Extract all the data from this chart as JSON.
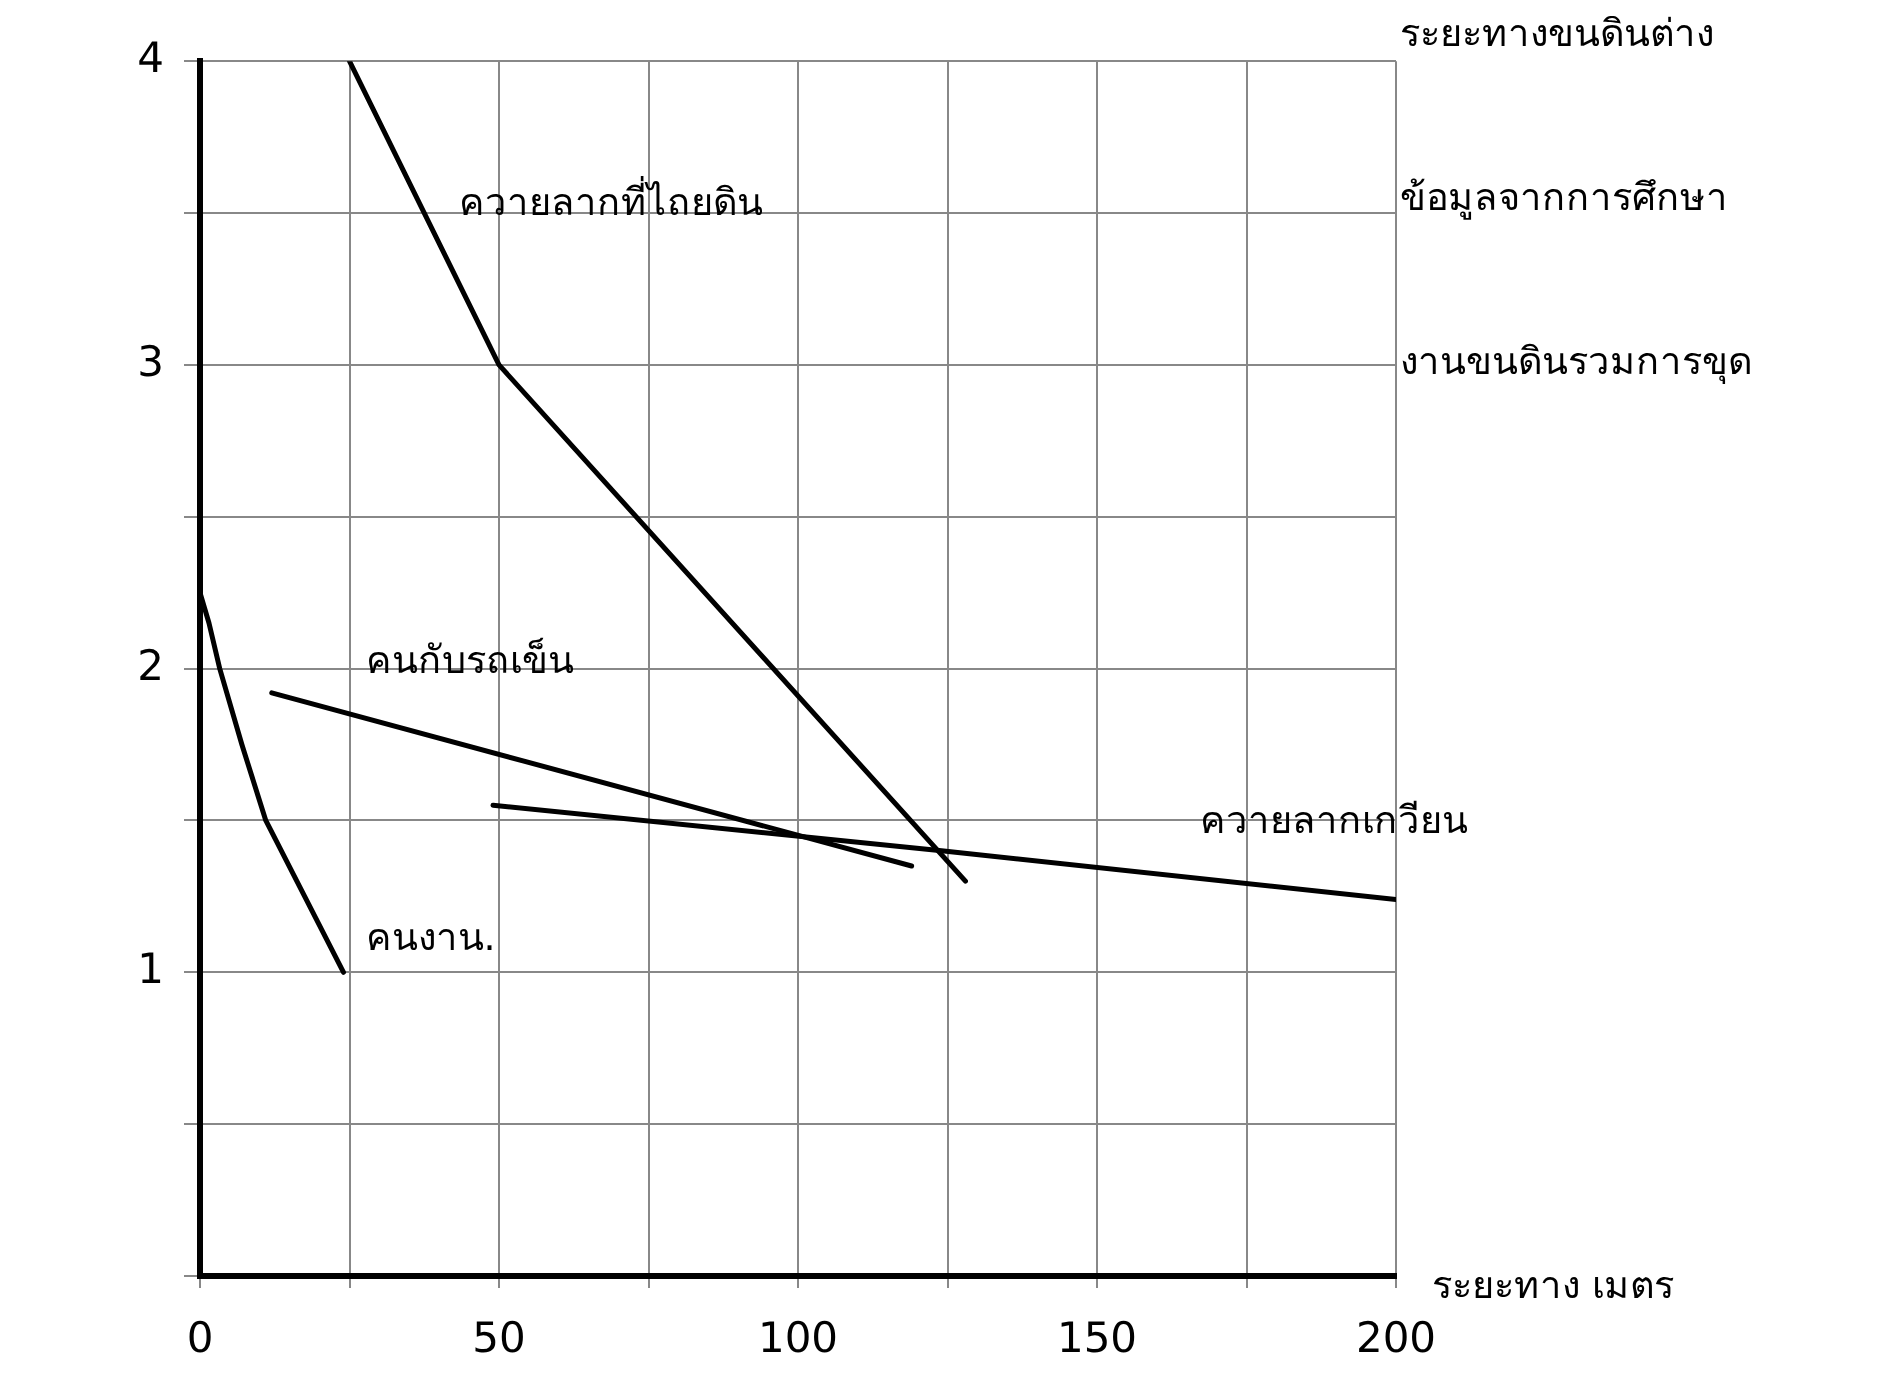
{
  "chart_data": {
    "type": "line",
    "title": "ระยะทางขนดินต่าง",
    "annotations": [
      "ข้อมูลจากการศึกษา",
      "งานขนดินรวมการขุด"
    ],
    "xlabel": "ระยะทาง เมตร",
    "series": [
      {
        "name": "ควายลากที่ไถยดิน",
        "color": "#000000",
        "x": [
          25,
          50,
          128
        ],
        "values": [
          4.0,
          3.0,
          1.3
        ]
      },
      {
        "name": "คนกับรถเข็น",
        "color": "#000000",
        "x": [
          12,
          119
        ],
        "values": [
          1.92,
          1.35
        ]
      },
      {
        "name": "ควายลากเกวียน",
        "color": "#000000",
        "x": [
          49,
          124,
          200
        ],
        "values": [
          1.55,
          1.4,
          1.24
        ]
      },
      {
        "name": "คนงาน.",
        "color": "#000000",
        "x": [
          0,
          1.5,
          3.3,
          7,
          11,
          17.5,
          24
        ],
        "values": [
          2.25,
          2.15,
          2.0,
          1.75,
          1.5,
          1.25,
          1.0
        ]
      }
    ],
    "xlim": [
      0,
      200
    ],
    "xticks": [
      0,
      {
        "value": 25,
        "label": null
      },
      50,
      {
        "value": 75,
        "label": null
      },
      100,
      {
        "value": 125,
        "label": null
      },
      150,
      {
        "value": 175,
        "label": null
      },
      200
    ],
    "ylim": [
      0,
      4
    ],
    "yticks": [
      {
        "value": 0,
        "label": null
      },
      {
        "value": 0.5,
        "label": null
      },
      1,
      {
        "value": 1.5,
        "label": null
      },
      2,
      {
        "value": 2.5,
        "label": null
      },
      3,
      {
        "value": 3.5,
        "label": null
      },
      4
    ],
    "grid": true,
    "marker": "none",
    "line_style": "solid"
  }
}
